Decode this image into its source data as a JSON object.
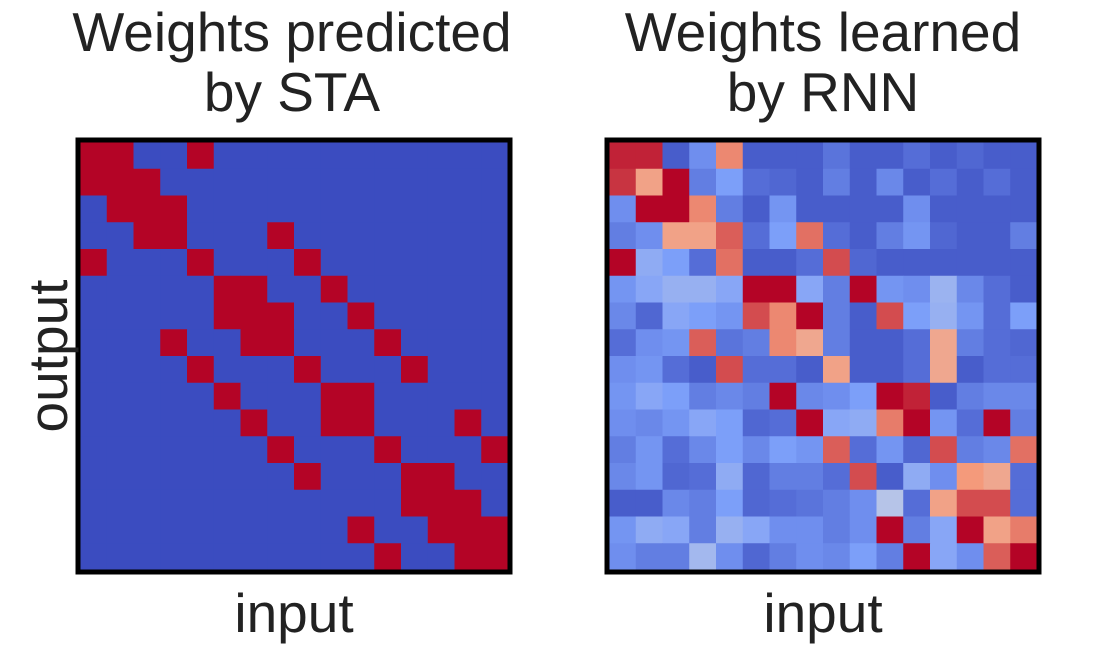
{
  "chart_data": [
    {
      "type": "heatmap",
      "title": "Weights predicted\nby STA",
      "xlabel": "input",
      "ylabel": "output",
      "rows": 16,
      "cols": 16,
      "colormap": "coolwarm",
      "vmin": 0,
      "vmax": 1,
      "values": [
        [
          1,
          1,
          0,
          0,
          1,
          0,
          0,
          0,
          0,
          0,
          0,
          0,
          0,
          0,
          0,
          0
        ],
        [
          1,
          1,
          1,
          0,
          0,
          0,
          0,
          0,
          0,
          0,
          0,
          0,
          0,
          0,
          0,
          0
        ],
        [
          0,
          1,
          1,
          1,
          0,
          0,
          0,
          0,
          0,
          0,
          0,
          0,
          0,
          0,
          0,
          0
        ],
        [
          0,
          0,
          1,
          1,
          0,
          0,
          0,
          1,
          0,
          0,
          0,
          0,
          0,
          0,
          0,
          0
        ],
        [
          1,
          0,
          0,
          0,
          1,
          0,
          0,
          0,
          1,
          0,
          0,
          0,
          0,
          0,
          0,
          0
        ],
        [
          0,
          0,
          0,
          0,
          0,
          1,
          1,
          0,
          0,
          1,
          0,
          0,
          0,
          0,
          0,
          0
        ],
        [
          0,
          0,
          0,
          0,
          0,
          1,
          1,
          1,
          0,
          0,
          1,
          0,
          0,
          0,
          0,
          0
        ],
        [
          0,
          0,
          0,
          1,
          0,
          0,
          1,
          1,
          0,
          0,
          0,
          1,
          0,
          0,
          0,
          0
        ],
        [
          0,
          0,
          0,
          0,
          1,
          0,
          0,
          0,
          1,
          0,
          0,
          0,
          1,
          0,
          0,
          0
        ],
        [
          0,
          0,
          0,
          0,
          0,
          1,
          0,
          0,
          0,
          1,
          1,
          0,
          0,
          0,
          0,
          0
        ],
        [
          0,
          0,
          0,
          0,
          0,
          0,
          1,
          0,
          0,
          1,
          1,
          0,
          0,
          0,
          1,
          0
        ],
        [
          0,
          0,
          0,
          0,
          0,
          0,
          0,
          1,
          0,
          0,
          0,
          1,
          0,
          0,
          0,
          1
        ],
        [
          0,
          0,
          0,
          0,
          0,
          0,
          0,
          0,
          1,
          0,
          0,
          0,
          1,
          1,
          0,
          0
        ],
        [
          0,
          0,
          0,
          0,
          0,
          0,
          0,
          0,
          0,
          0,
          0,
          0,
          1,
          1,
          1,
          0
        ],
        [
          0,
          0,
          0,
          0,
          0,
          0,
          0,
          0,
          0,
          0,
          1,
          0,
          0,
          1,
          1,
          1
        ],
        [
          0,
          0,
          0,
          0,
          0,
          0,
          0,
          0,
          0,
          0,
          0,
          1,
          0,
          0,
          1,
          1
        ]
      ]
    },
    {
      "type": "heatmap",
      "title": "Weights learned\nby RNN",
      "xlabel": "input",
      "rows": 16,
      "cols": 16,
      "colormap": "coolwarm",
      "vmin": 0,
      "vmax": 1,
      "values": [
        [
          0.95,
          0.95,
          0.05,
          0.2,
          0.78,
          0.05,
          0.05,
          0.05,
          0.12,
          0.05,
          0.05,
          0.1,
          0.05,
          0.08,
          0.05,
          0.05
        ],
        [
          0.92,
          0.72,
          1.0,
          0.15,
          0.25,
          0.1,
          0.08,
          0.05,
          0.15,
          0.05,
          0.18,
          0.05,
          0.1,
          0.05,
          0.1,
          0.05
        ],
        [
          0.2,
          1.0,
          1.0,
          0.78,
          0.15,
          0.05,
          0.22,
          0.05,
          0.05,
          0.05,
          0.05,
          0.2,
          0.05,
          0.05,
          0.05,
          0.05
        ],
        [
          0.15,
          0.2,
          0.72,
          0.72,
          0.85,
          0.1,
          0.25,
          0.82,
          0.1,
          0.05,
          0.15,
          0.22,
          0.08,
          0.05,
          0.05,
          0.15
        ],
        [
          1.0,
          0.3,
          0.25,
          0.1,
          0.82,
          0.05,
          0.05,
          0.1,
          0.88,
          0.08,
          0.05,
          0.05,
          0.05,
          0.05,
          0.05,
          0.05
        ],
        [
          0.22,
          0.28,
          0.32,
          0.32,
          0.28,
          1.0,
          1.0,
          0.28,
          0.15,
          1.0,
          0.22,
          0.2,
          0.33,
          0.18,
          0.1,
          0.05
        ],
        [
          0.18,
          0.08,
          0.28,
          0.25,
          0.22,
          0.88,
          0.78,
          1.0,
          0.15,
          0.05,
          0.88,
          0.25,
          0.32,
          0.22,
          0.1,
          0.25
        ],
        [
          0.1,
          0.2,
          0.22,
          0.85,
          0.12,
          0.15,
          0.78,
          0.7,
          0.15,
          0.05,
          0.05,
          0.1,
          0.7,
          0.15,
          0.1,
          0.08
        ],
        [
          0.2,
          0.22,
          0.1,
          0.05,
          0.88,
          0.1,
          0.1,
          0.05,
          0.72,
          0.05,
          0.05,
          0.1,
          0.7,
          0.05,
          0.1,
          0.1
        ],
        [
          0.22,
          0.28,
          0.25,
          0.15,
          0.18,
          0.15,
          1.0,
          0.18,
          0.2,
          0.25,
          1.0,
          0.95,
          0.05,
          0.15,
          0.18,
          0.18
        ],
        [
          0.2,
          0.18,
          0.22,
          0.28,
          0.25,
          0.08,
          0.1,
          1.0,
          0.28,
          0.3,
          0.8,
          1.0,
          0.22,
          0.1,
          1.0,
          0.15
        ],
        [
          0.15,
          0.22,
          0.1,
          0.18,
          0.25,
          0.18,
          0.25,
          0.22,
          0.85,
          0.1,
          0.22,
          0.08,
          0.88,
          0.15,
          0.18,
          0.82
        ],
        [
          0.18,
          0.22,
          0.08,
          0.1,
          0.3,
          0.08,
          0.15,
          0.15,
          0.1,
          0.88,
          0.05,
          0.3,
          0.2,
          0.75,
          0.7,
          0.1
        ],
        [
          0.05,
          0.05,
          0.18,
          0.15,
          0.25,
          0.08,
          0.1,
          0.12,
          0.15,
          0.2,
          0.4,
          0.1,
          0.72,
          0.88,
          0.88,
          0.1
        ],
        [
          0.22,
          0.3,
          0.28,
          0.15,
          0.32,
          0.28,
          0.2,
          0.2,
          0.15,
          0.2,
          1.0,
          0.15,
          0.28,
          1.0,
          0.72,
          0.8
        ],
        [
          0.2,
          0.15,
          0.15,
          0.35,
          0.2,
          0.08,
          0.15,
          0.2,
          0.18,
          0.25,
          0.15,
          1.0,
          0.28,
          0.2,
          0.85,
          1.0
        ]
      ]
    }
  ]
}
